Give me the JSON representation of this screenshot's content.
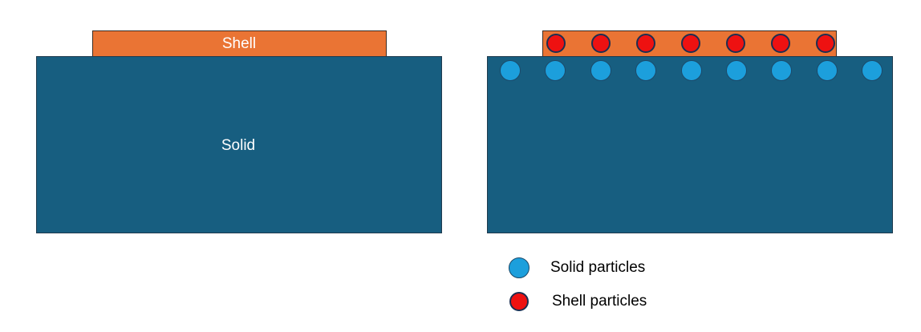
{
  "left_diagram": {
    "shell_label": "Shell",
    "solid_label": "Solid"
  },
  "right_diagram": {
    "solid_particle_count": 9,
    "shell_particle_count": 7
  },
  "legend": {
    "solid_particles": "Solid particles",
    "shell_particles": "Shell particles"
  },
  "colors": {
    "solid": "#175e80",
    "shell": "#ea7434",
    "solid_particle": "#1c9fdc",
    "shell_particle": "#ee1111"
  }
}
